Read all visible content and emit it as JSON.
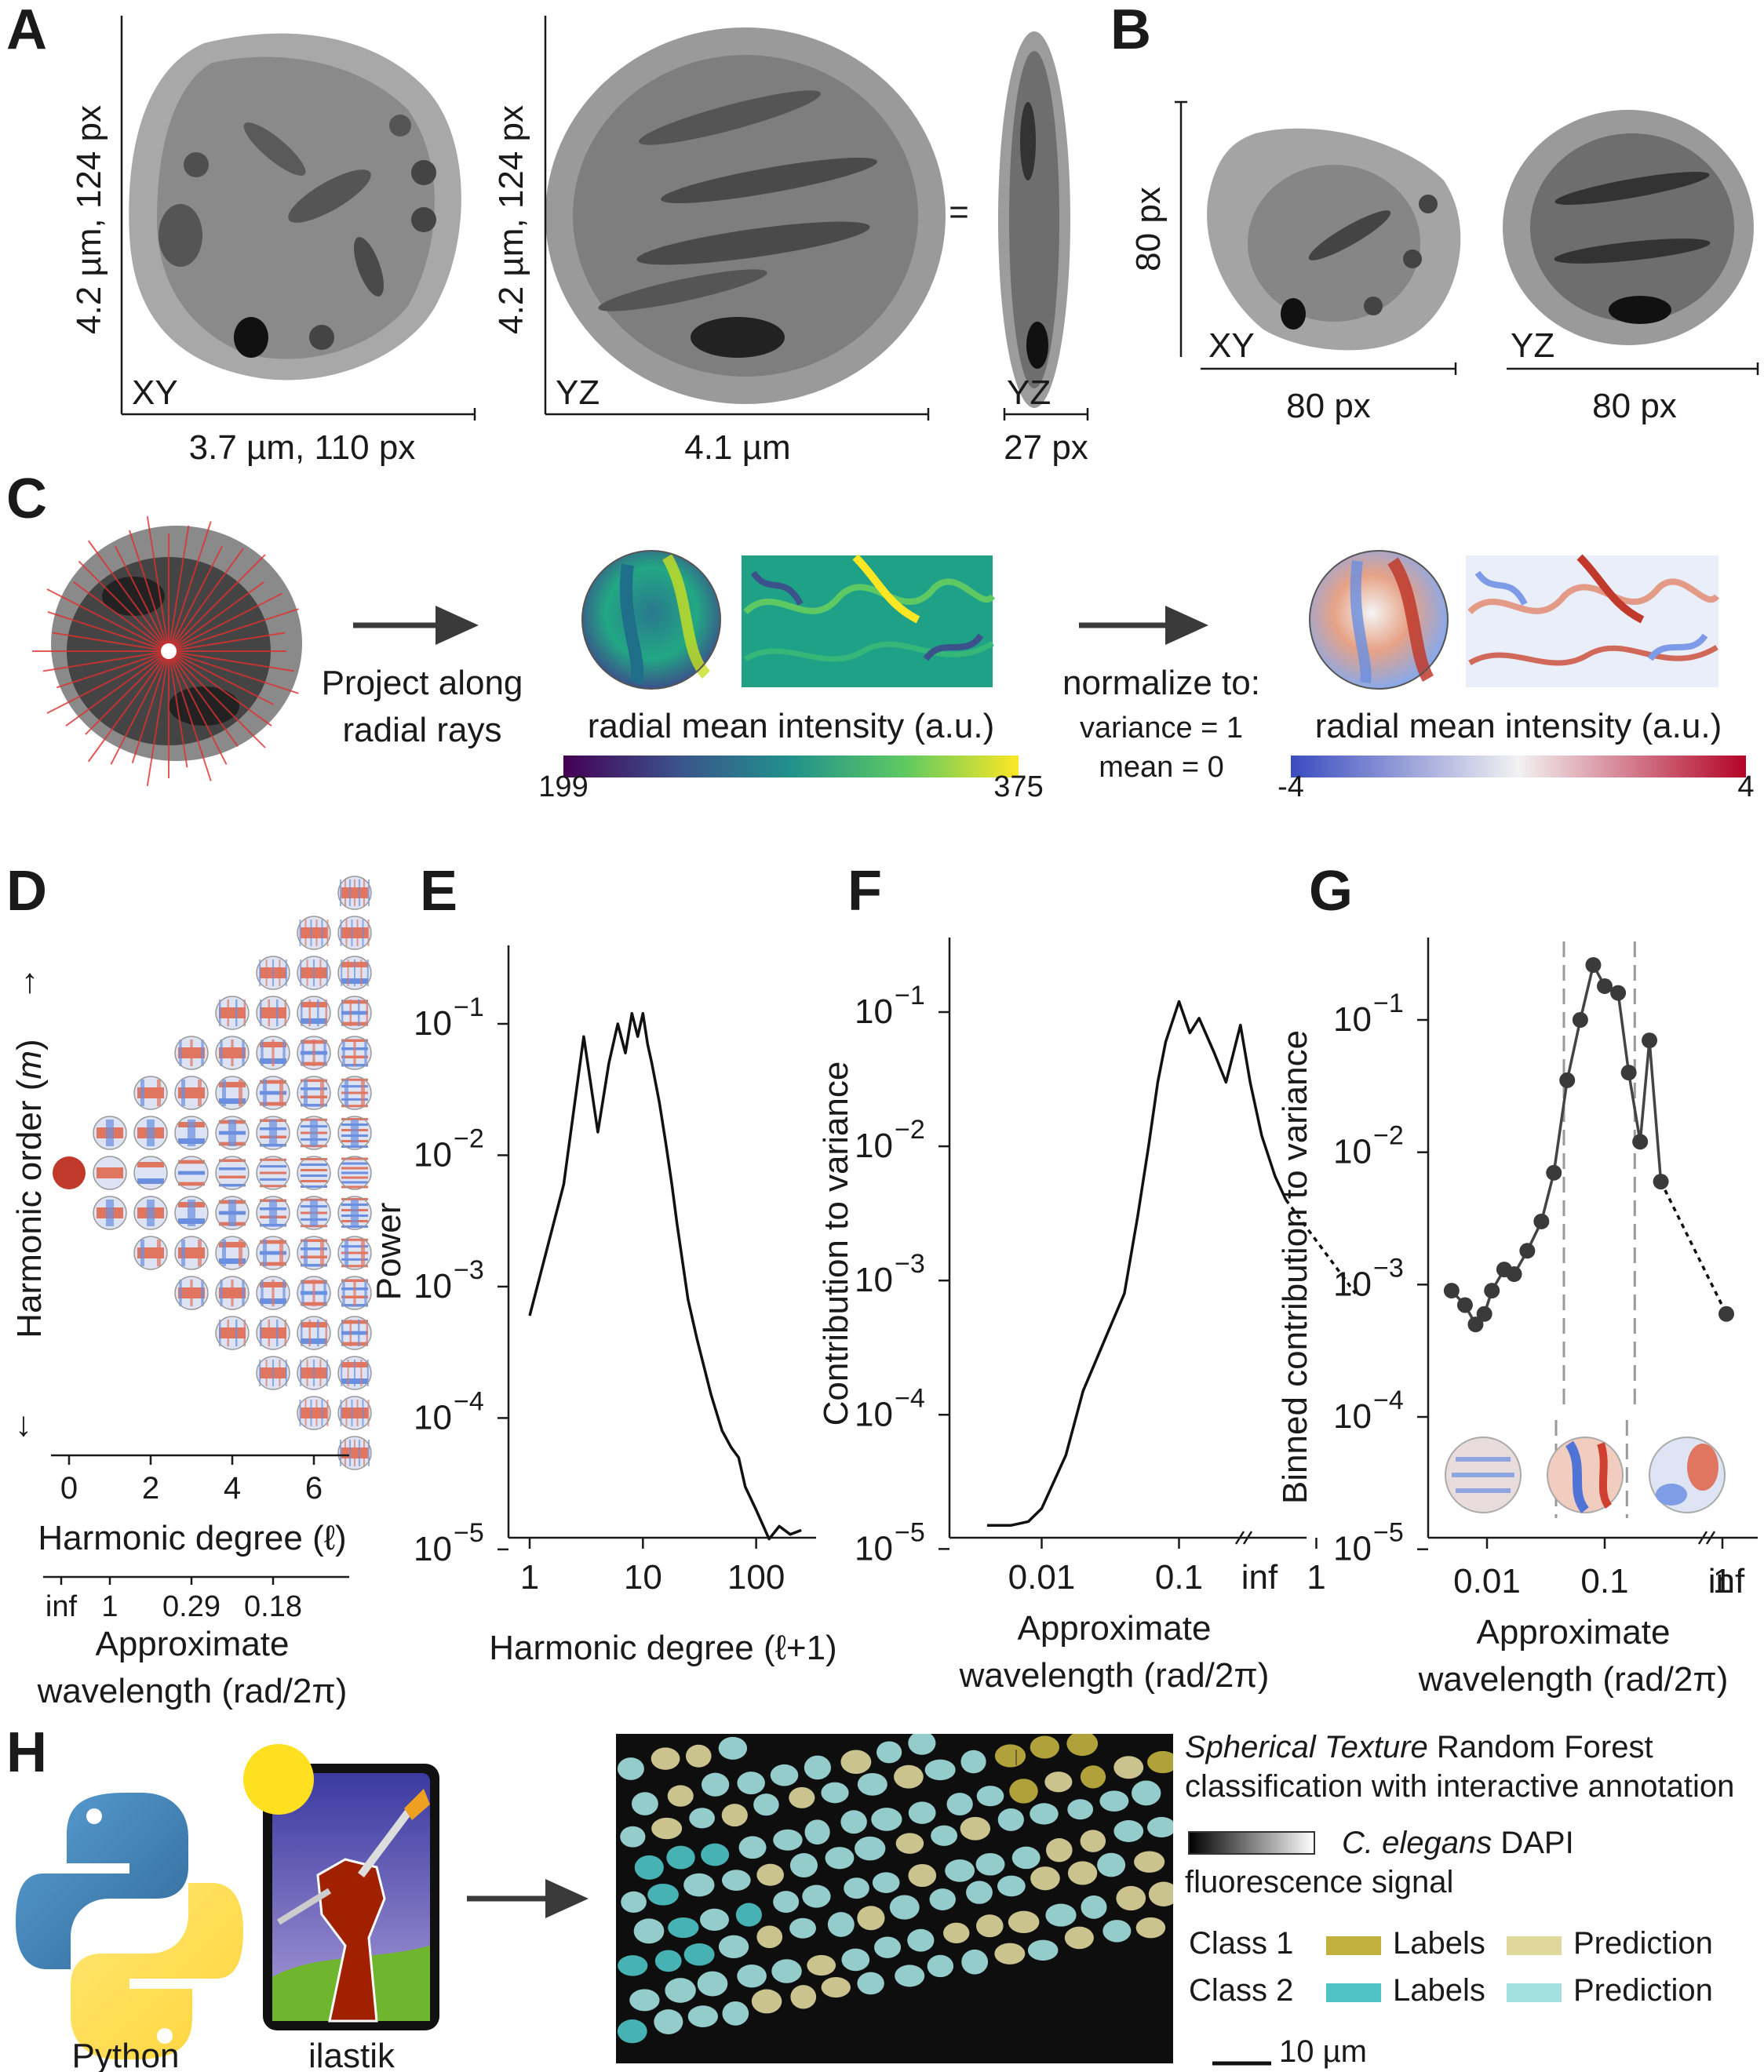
{
  "panels": {
    "a": "A",
    "b": "B",
    "c": "C",
    "d": "D",
    "e": "E",
    "f": "F",
    "g": "G",
    "h": "H"
  },
  "panel_a": {
    "xy_height": "4.2 µm, 124 px",
    "xy_width": "3.7 µm, 110 px",
    "xy_tag": "XY",
    "yz_height": "4.2 µm, 124 px",
    "yz_width": "4.1 µm",
    "yz_tag": "YZ",
    "equals": "=",
    "yz2_tag": "YZ",
    "yz2_width": "27 px"
  },
  "panel_b": {
    "height": "80 px",
    "xy_tag": "XY",
    "xy_width": "80 px",
    "yz_tag": "YZ",
    "yz_width": "80 px"
  },
  "panel_c": {
    "project_line1": "Project along",
    "project_line2": "radial rays",
    "cbar1_label": "radial mean intensity (a.u.)",
    "cbar1_min": "199",
    "cbar1_max": "375",
    "normalize": "normalize to:",
    "variance": "variance = 1",
    "mean": "mean = 0",
    "cbar2_label": "radial mean intensity (a.u.)",
    "cbar2_min": "-4",
    "cbar2_max": "4"
  },
  "panel_d": {
    "ylabel": "Harmonic order (m)",
    "ylabel_prefix": "Harmonic order (",
    "ylabel_var": "m",
    "ylabel_suffix": ")",
    "up_arrow": "↑",
    "down_arrow": "↓",
    "xticks": [
      "0",
      "2",
      "4",
      "6"
    ],
    "xlabel": "Harmonic degree (ℓ)",
    "wl_ticks": [
      "inf",
      "1",
      "0.29",
      "0.18"
    ],
    "wl_label1": "Approximate",
    "wl_label2": "wavelength (rad/2π)"
  },
  "panel_e": {
    "ylabel": "Power",
    "xlabel": "Harmonic degree (ℓ+1)",
    "xticks": [
      "1",
      "10",
      "100"
    ],
    "yticks": [
      "10",
      "10",
      "10",
      "10",
      "10"
    ],
    "yexp": [
      "−1",
      "−2",
      "−3",
      "−4",
      "−5"
    ]
  },
  "panel_f": {
    "ylabel": "Contribution to variance",
    "xlabel1": "Approximate",
    "xlabel2": "wavelength (rad/2π)",
    "xticks": [
      "0.01",
      "0.1",
      "1",
      "inf"
    ],
    "yticks": [
      "10",
      "10",
      "10",
      "10",
      "10"
    ],
    "yexp": [
      "−1",
      "−2",
      "−3",
      "−4",
      "−5"
    ]
  },
  "panel_g": {
    "ylabel": "Binned contribution to variance",
    "xlabel1": "Approximate",
    "xlabel2": "wavelength (rad/2π)",
    "xticks": [
      "0.01",
      "0.1",
      "1",
      "inf"
    ],
    "yticks": [
      "10",
      "10",
      "10",
      "10",
      "10"
    ],
    "yexp": [
      "−1",
      "−2",
      "−3",
      "−4",
      "−5"
    ]
  },
  "panel_h": {
    "python": "Python",
    "ilastik": "ilastik",
    "title_italic": "Spherical Texture",
    "title_rest": " Random Forest",
    "title_line2": "classification with interactive annotation",
    "signal_italic": "C. elegans",
    "signal_rest": " DAPI",
    "signal_line2": "fluorescence signal",
    "class1": "Class 1",
    "class2": "Class 2",
    "labels": "Labels",
    "prediction": "Prediction",
    "scalebar": "10 µm"
  },
  "colors": {
    "class1_labels": "#c2b13f",
    "class1_prediction": "#e0d79c",
    "class2_labels": "#4ec4c6",
    "class2_prediction": "#a3e0e0",
    "arrow": "#3a3a3a"
  },
  "chart_data": [
    {
      "panel": "E",
      "type": "line",
      "xscale": "log",
      "yscale": "log",
      "xlabel": "Harmonic degree (ℓ+1)",
      "ylabel": "Power",
      "xlim": [
        1,
        300
      ],
      "ylim": [
        1e-05,
        0.1
      ],
      "x": [
        1,
        2,
        3,
        4,
        5,
        6,
        7,
        8,
        9,
        10,
        11,
        12,
        14,
        16,
        18,
        20,
        25,
        30,
        40,
        50,
        60,
        70,
        80,
        100,
        130,
        160,
        200,
        250
      ],
      "y": [
        0.0006,
        0.006,
        0.08,
        0.015,
        0.05,
        0.1,
        0.06,
        0.12,
        0.08,
        0.12,
        0.07,
        0.05,
        0.025,
        0.012,
        0.006,
        0.003,
        0.0008,
        0.0004,
        0.00015,
        8e-05,
        6e-05,
        5e-05,
        3e-05,
        2e-05,
        1.2e-05,
        1.5e-05,
        1.3e-05,
        1.4e-05
      ]
    },
    {
      "panel": "F",
      "type": "line",
      "xscale": "log",
      "yscale": "log",
      "xlabel": "Approximate wavelength (rad/2π)",
      "ylabel": "Contribution to variance",
      "x": [
        0.004,
        0.006,
        0.008,
        0.01,
        0.015,
        0.02,
        0.03,
        0.04,
        0.05,
        0.06,
        0.07,
        0.08,
        0.1,
        0.12,
        0.14,
        0.18,
        0.22,
        0.28,
        0.33,
        0.4,
        0.5,
        0.6
      ],
      "y": [
        1.5e-05,
        1.5e-05,
        1.6e-05,
        2e-05,
        5e-05,
        0.00015,
        0.0004,
        0.0008,
        0.003,
        0.01,
        0.03,
        0.06,
        0.12,
        0.07,
        0.09,
        0.05,
        0.03,
        0.08,
        0.03,
        0.012,
        0.006,
        0.004
      ],
      "extrapolated": {
        "x": [
          0.6,
          1.0
        ],
        "y": [
          0.004,
          0.0008
        ]
      }
    },
    {
      "panel": "G",
      "type": "scatter",
      "xscale": "log",
      "yscale": "log",
      "xlabel": "Approximate wavelength (rad/2π)",
      "ylabel": "Binned contribution to variance",
      "x": [
        0.005,
        0.0065,
        0.008,
        0.0095,
        0.011,
        0.014,
        0.017,
        0.022,
        0.029,
        0.037,
        0.048,
        0.062,
        0.08,
        0.1,
        0.13,
        0.16,
        0.2,
        0.24,
        0.3,
        0.4
      ],
      "y": [
        0.0009,
        0.0007,
        0.0005,
        0.0006,
        0.0009,
        0.0013,
        0.0012,
        0.0018,
        0.003,
        0.007,
        0.035,
        0.1,
        0.26,
        0.18,
        0.16,
        0.04,
        0.012,
        0.07,
        0.006,
        0.0006
      ],
      "dividers_x": [
        0.045,
        0.18
      ]
    }
  ]
}
